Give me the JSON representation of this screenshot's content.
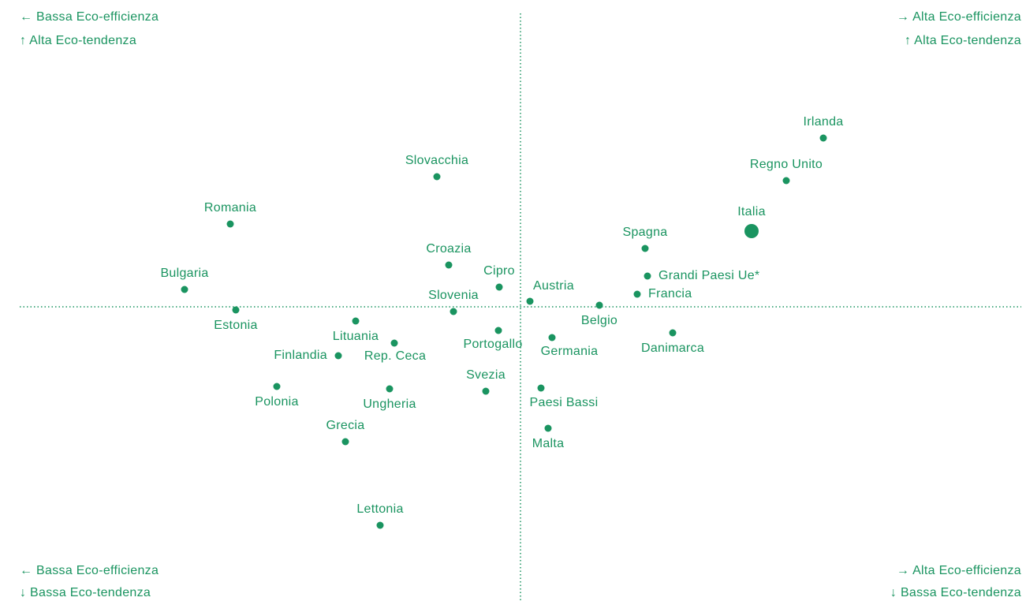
{
  "chart_data": {
    "type": "scatter",
    "color": "#1a9460",
    "highlight": "Italia",
    "annotations": {
      "top_left": [
        "← Bassa Eco-efficienza",
        "↑ Alta Eco-tendenza"
      ],
      "top_right": [
        "→ Alta Eco-efficienza",
        "↑ Alta Eco-tendenza"
      ],
      "bottom_left": [
        "← Bassa Eco-efficienza",
        "↓ Bassa Eco-tendenza"
      ],
      "bottom_right": [
        "→ Alta Eco-efficienza",
        "↓ Bassa Eco-tendenza"
      ]
    },
    "xlim": [
      -63.5,
      63.5
    ],
    "ylim": [
      -37.3,
      38.9
    ],
    "categories": [
      "Irlanda",
      "Regno Unito",
      "Italia",
      "Spagna",
      "Grandi Paesi Ue*",
      "Francia",
      "Danimarca",
      "Belgio",
      "Austria",
      "Germania",
      "Cipro",
      "Portogallo",
      "Paesi Bassi",
      "Malta",
      "Svezia",
      "Slovacchia",
      "Croazia",
      "Slovenia",
      "Romania",
      "Bulgaria",
      "Estonia",
      "Lituania",
      "Rep. Ceca",
      "Finlandia",
      "Polonia",
      "Ungheria",
      "Grecia",
      "Lettonia"
    ],
    "x": [
      38.4,
      33.7,
      29.3,
      15.8,
      16.1,
      14.8,
      19.3,
      10.0,
      1.2,
      4.0,
      -2.7,
      -2.8,
      2.6,
      3.5,
      -4.4,
      -10.6,
      -9.1,
      -8.5,
      -36.8,
      -42.6,
      -36.1,
      -20.9,
      -16.0,
      -23.1,
      -30.9,
      -16.6,
      -22.2,
      -17.8
    ],
    "values": [
      21.4,
      16.0,
      9.6,
      7.4,
      3.9,
      1.6,
      -3.3,
      0.2,
      0.7,
      -3.9,
      2.5,
      -3.0,
      -10.3,
      -15.4,
      -10.7,
      16.5,
      5.3,
      -0.6,
      10.5,
      2.2,
      -0.4,
      -1.8,
      -4.6,
      -6.2,
      -10.1,
      -10.4,
      -17.1,
      -27.7
    ]
  }
}
